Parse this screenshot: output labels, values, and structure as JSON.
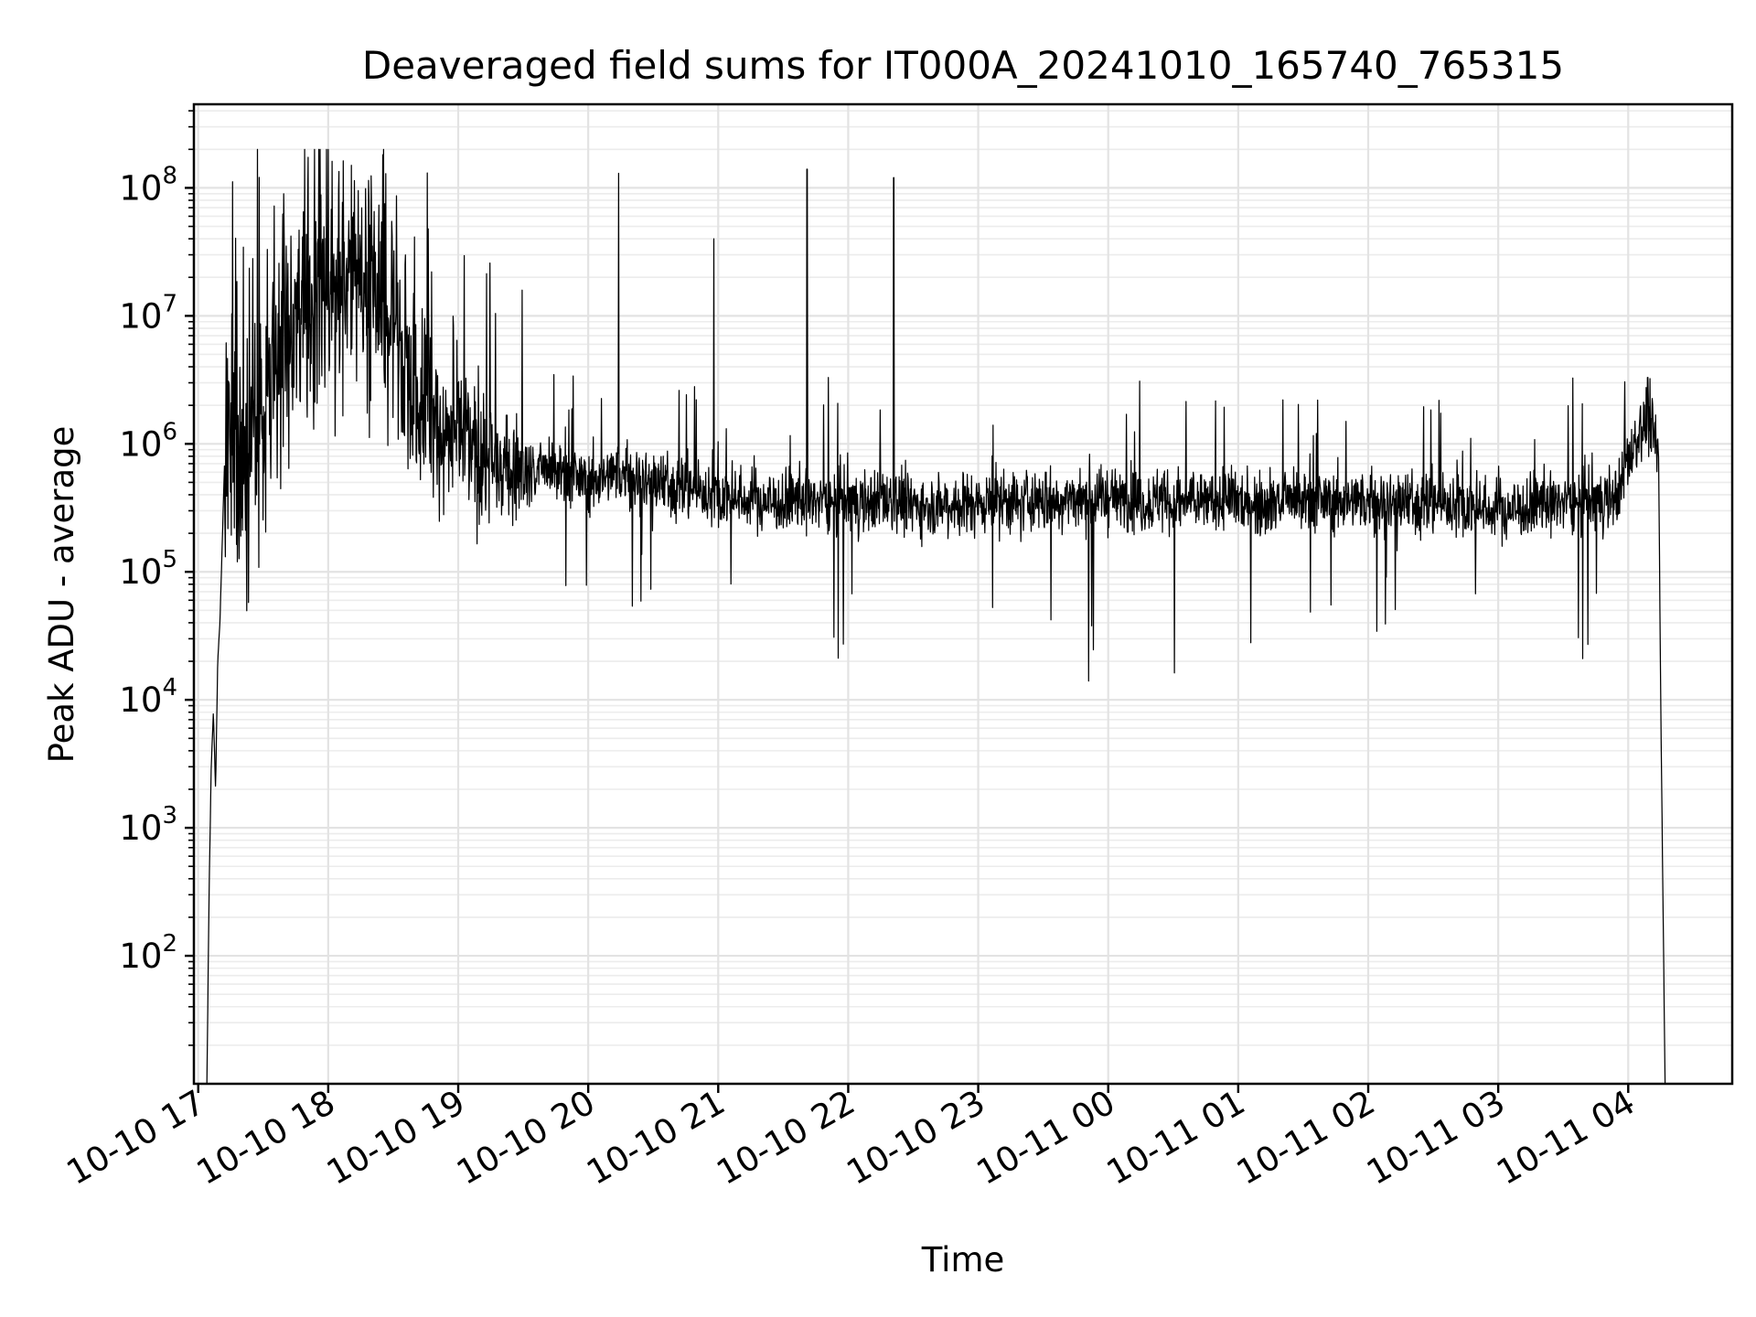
{
  "chart_data": {
    "type": "line",
    "title": "Deaveraged field sums for IT000A_20241010_165740_765315",
    "xlabel": "Time",
    "ylabel": "Peak ADU - average",
    "yscale": "log",
    "ylim": [
      10,
      450000000
    ],
    "xlim": [
      "2024-10-10 16:58",
      "2024-10-11 04:48"
    ],
    "grid": true,
    "legend": "none",
    "line_color": "#000000",
    "x_tick_labels": [
      "10-10 17",
      "10-10 18",
      "10-10 19",
      "10-10 20",
      "10-10 21",
      "10-10 22",
      "10-10 23",
      "10-11 00",
      "10-11 01",
      "10-11 02",
      "10-11 03",
      "10-11 04"
    ],
    "y_tick_labels": [
      {
        "base": "10",
        "exp": "2"
      },
      {
        "base": "10",
        "exp": "3"
      },
      {
        "base": "10",
        "exp": "4"
      },
      {
        "base": "10",
        "exp": "5"
      },
      {
        "base": "10",
        "exp": "6"
      },
      {
        "base": "10",
        "exp": "7"
      },
      {
        "base": "10",
        "exp": "8"
      }
    ],
    "series": [
      {
        "x": [
          "2024-10-10 17:04",
          "2024-10-10 17:05",
          "2024-10-10 17:06",
          "2024-10-10 17:07",
          "2024-10-10 17:08",
          "2024-10-10 17:09",
          "2024-10-10 17:10",
          "2024-10-10 17:11",
          "2024-10-10 17:12",
          "2024-10-10 17:14",
          "2024-10-10 17:16",
          "2024-10-10 17:20",
          "2024-10-10 17:30",
          "2024-10-10 17:40",
          "2024-10-10 17:50",
          "2024-10-10 18:00",
          "2024-10-10 18:10",
          "2024-10-10 18:20",
          "2024-10-10 18:30",
          "2024-10-10 18:40",
          "2024-10-10 18:50",
          "2024-10-10 19:00",
          "2024-10-10 19:10",
          "2024-10-10 19:20",
          "2024-10-10 19:30",
          "2024-10-10 19:45",
          "2024-10-10 20:00",
          "2024-10-10 20:15",
          "2024-10-10 20:30",
          "2024-10-10 20:45",
          "2024-10-10 21:00",
          "2024-10-10 21:30",
          "2024-10-10 22:00",
          "2024-10-10 22:30",
          "2024-10-10 23:00",
          "2024-10-10 23:30",
          "2024-10-11 00:00",
          "2024-10-11 00:30",
          "2024-10-11 01:00",
          "2024-10-11 01:30",
          "2024-10-11 02:00",
          "2024-10-11 02:30",
          "2024-10-11 03:00",
          "2024-10-11 03:30",
          "2024-10-11 03:45",
          "2024-10-11 03:55",
          "2024-10-11 04:05",
          "2024-10-11 04:10",
          "2024-10-11 04:14",
          "2024-10-11 04:15",
          "2024-10-11 04:17"
        ],
        "y": [
          10,
          300,
          3000,
          8000,
          2000,
          20000,
          40000,
          150000,
          600000,
          1000000,
          800000,
          700000,
          1000000,
          5000000,
          10000000,
          15000000,
          20000000,
          12000000,
          6000000,
          3000000,
          1500000,
          1000000,
          800000,
          700000,
          600000,
          600000,
          500000,
          600000,
          500000,
          450000,
          380000,
          350000,
          360000,
          340000,
          340000,
          360000,
          380000,
          350000,
          360000,
          350000,
          360000,
          340000,
          300000,
          350000,
          360000,
          400000,
          1200000,
          1500000,
          900000,
          10000,
          10
        ]
      }
    ],
    "notable_peaks": [
      {
        "x": "2024-10-10 20:14",
        "y": 130000000
      },
      {
        "x": "2024-10-10 20:58",
        "y": 40000000
      },
      {
        "x": "2024-10-10 21:41",
        "y": 140000000
      },
      {
        "x": "2024-10-10 22:21",
        "y": 120000000
      },
      {
        "x": "2024-10-11 04:09",
        "y": 3300000
      }
    ]
  }
}
